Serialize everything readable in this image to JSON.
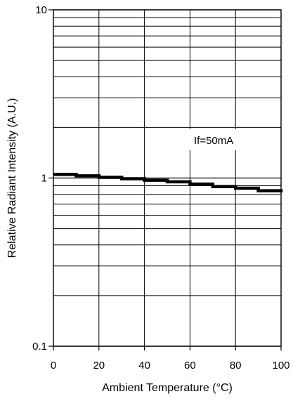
{
  "chart_data": {
    "type": "line",
    "title": "",
    "xlabel": "Ambient Temperature (°C)",
    "ylabel": "Relative Radiant Intensity (A.U.)",
    "xlim": [
      0,
      100
    ],
    "ylim": [
      0.1,
      10
    ],
    "y_scale": "log",
    "grid": true,
    "x_ticks": [
      0,
      20,
      40,
      60,
      80,
      100
    ],
    "x_tick_labels": [
      "0",
      "20",
      "40",
      "60",
      "80",
      "100"
    ],
    "y_major_ticks": [
      0.1,
      1,
      10
    ],
    "y_tick_labels": [
      "0.1",
      "1",
      "10"
    ],
    "annotation": "If=50mA",
    "series": [
      {
        "x": [
          0,
          10,
          20,
          30,
          40,
          50,
          60,
          70,
          80,
          90,
          100
        ],
        "y": [
          1.05,
          1.03,
          1.01,
          0.99,
          0.97,
          0.95,
          0.92,
          0.89,
          0.87,
          0.84,
          0.82
        ],
        "color": "#000000"
      }
    ]
  }
}
